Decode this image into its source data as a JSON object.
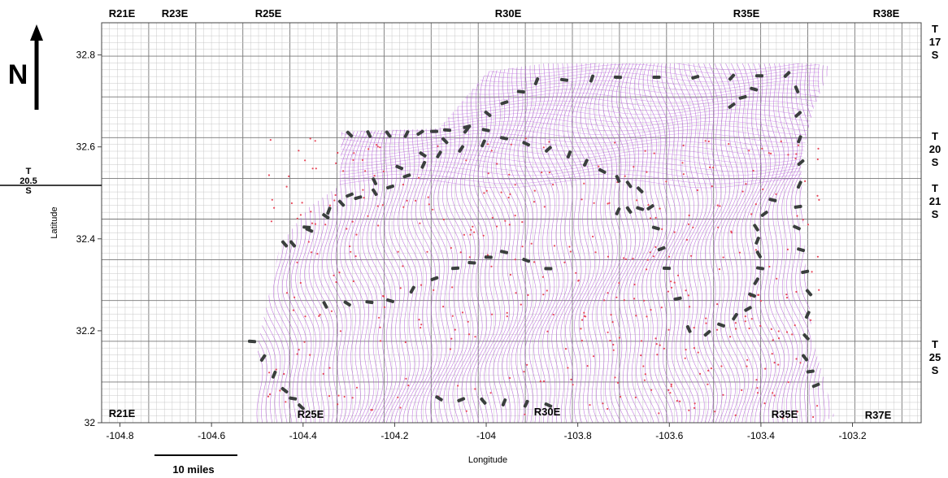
{
  "map": {
    "x_axis_label": "Longitude",
    "y_axis_label": "Latitude",
    "xlim": [
      -104.84,
      -103.05
    ],
    "ylim": [
      32,
      32.87
    ],
    "xticks": [
      -104.8,
      -104.6,
      -104.4,
      -104.2,
      -104,
      -103.8,
      -103.6,
      -103.4,
      -103.2
    ],
    "yticks": [
      32,
      32.2,
      32.4,
      32.6,
      32.8
    ],
    "north_label": "N",
    "scale_label": "10 miles",
    "range_labels_top": [
      "R21E",
      "R23E",
      "R25E",
      "R30E",
      "R35E",
      "R38E"
    ],
    "range_labels_bottom": [
      "R21E",
      "R25E",
      "R30E",
      "R35E",
      "R37E"
    ],
    "township_labels_right": [
      [
        "T",
        "17",
        "S"
      ],
      [
        "T",
        "20",
        "S"
      ],
      [
        "T",
        "21",
        "S"
      ],
      [
        "T",
        "25",
        "S"
      ]
    ],
    "township_label_left": [
      "T",
      "20.5",
      "S"
    ]
  }
}
